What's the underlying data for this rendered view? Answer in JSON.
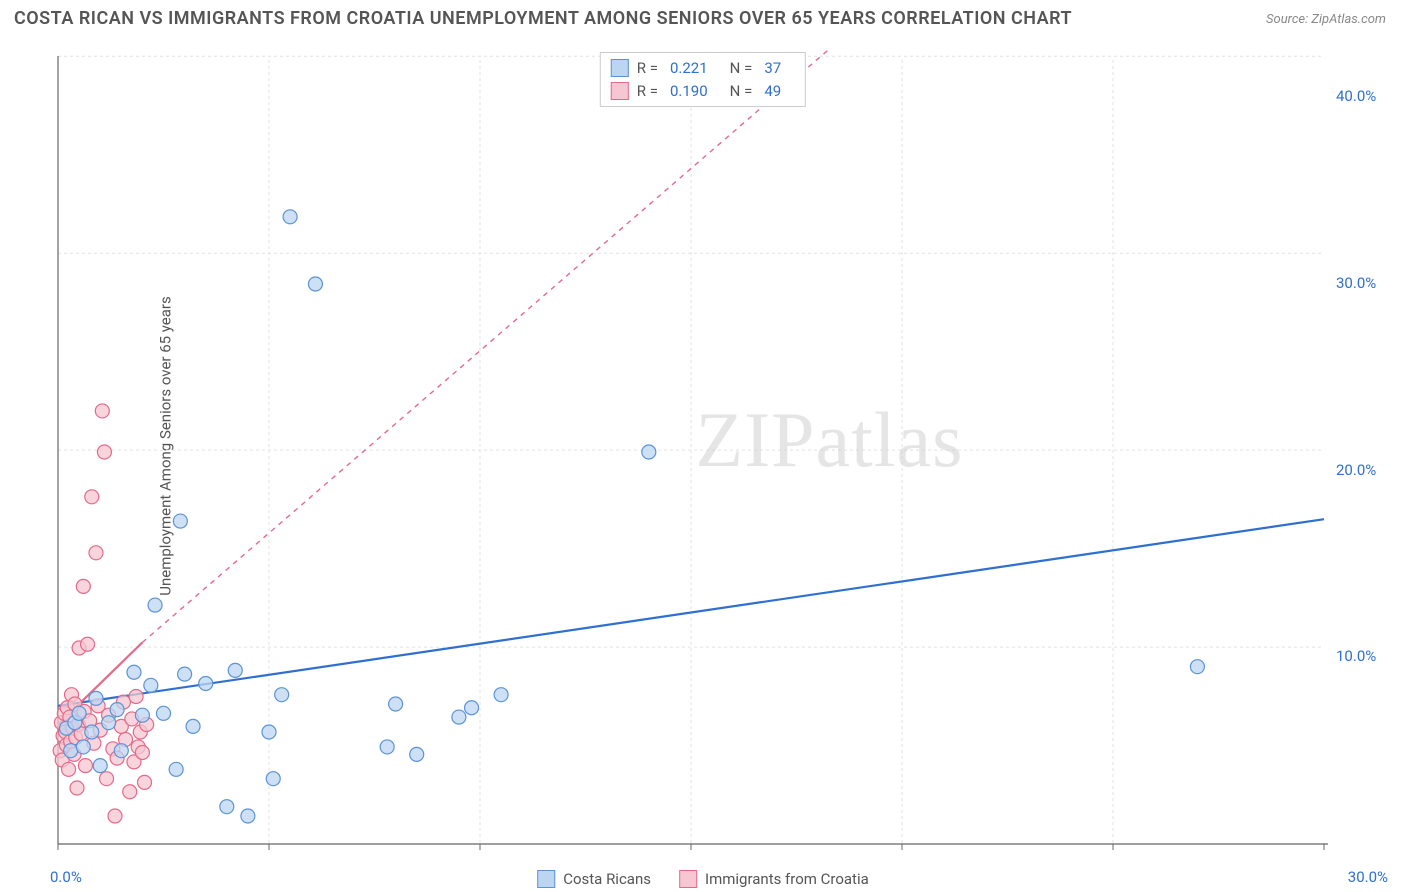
{
  "title": "COSTA RICAN VS IMMIGRANTS FROM CROATIA UNEMPLOYMENT AMONG SENIORS OVER 65 YEARS CORRELATION CHART",
  "source": "Source: ZipAtlas.com",
  "ylabel": "Unemployment Among Seniors over 65 years",
  "watermark_a": "ZIP",
  "watermark_b": "atlas",
  "chart": {
    "type": "scatter",
    "background_color": "#ffffff",
    "grid_color": "#e2e2e2",
    "axis_color": "#666666",
    "text_color": "#555555",
    "value_color": "#2f6fd0",
    "xlim": [
      0,
      30
    ],
    "ylim": [
      0,
      42
    ],
    "x_ticks": [
      0,
      30
    ],
    "x_tick_labels": [
      "0.0%",
      "30.0%"
    ],
    "y_ticks": [
      10,
      20,
      30,
      40
    ],
    "y_tick_labels": [
      "10.0%",
      "20.0%",
      "30.0%",
      "40.0%"
    ],
    "y_grid_lines": [
      10.55,
      21.1,
      31.65,
      42.2
    ],
    "x_grid_divisions": 6,
    "marker_radius": 7,
    "marker_stroke_width": 1.2,
    "trend_width_solid": 2.2,
    "trend_width_dash": 1.4,
    "series": [
      {
        "name": "Costa Ricans",
        "key": "costa_ricans",
        "fill": "#bcd6f2",
        "stroke": "#5b93d6",
        "swatch_fill": "#bcd6f2",
        "swatch_stroke": "#5b93d6",
        "R": "0.221",
        "N": "37",
        "trend": {
          "y0": 7.4,
          "y1": 17.4,
          "xmax": 30,
          "dashed": false,
          "color": "#2f6fd0"
        },
        "points": [
          [
            0.2,
            6.2
          ],
          [
            0.3,
            5.0
          ],
          [
            0.4,
            6.5
          ],
          [
            0.5,
            7.0
          ],
          [
            0.6,
            5.2
          ],
          [
            0.8,
            6.0
          ],
          [
            0.9,
            7.8
          ],
          [
            1.0,
            4.2
          ],
          [
            1.2,
            6.5
          ],
          [
            1.4,
            7.2
          ],
          [
            1.5,
            5.0
          ],
          [
            1.8,
            9.2
          ],
          [
            2.0,
            6.9
          ],
          [
            2.2,
            8.5
          ],
          [
            2.3,
            12.8
          ],
          [
            2.5,
            7.0
          ],
          [
            2.8,
            4.0
          ],
          [
            2.9,
            17.3
          ],
          [
            3.0,
            9.1
          ],
          [
            3.2,
            6.3
          ],
          [
            3.5,
            8.6
          ],
          [
            4.0,
            2.0
          ],
          [
            4.2,
            9.3
          ],
          [
            4.5,
            1.5
          ],
          [
            5.0,
            6.0
          ],
          [
            5.1,
            3.5
          ],
          [
            5.3,
            8.0
          ],
          [
            5.5,
            33.6
          ],
          [
            6.1,
            30.0
          ],
          [
            7.8,
            5.2
          ],
          [
            8.0,
            7.5
          ],
          [
            8.5,
            4.8
          ],
          [
            9.5,
            6.8
          ],
          [
            9.8,
            7.3
          ],
          [
            10.5,
            8.0
          ],
          [
            14.0,
            21.0
          ],
          [
            27.0,
            9.5
          ]
        ]
      },
      {
        "name": "Immigrants from Croatia",
        "key": "immigrants_croatia",
        "fill": "#f6c7d2",
        "stroke": "#e46a8a",
        "swatch_fill": "#f6c7d2",
        "swatch_stroke": "#e46a8a",
        "R": "0.190",
        "N": "49",
        "trend": {
          "y0": 6.4,
          "y1": 10.8,
          "xmax": 2.0,
          "dashed_from": 2.0,
          "dashed_to_x": 19.0,
          "dashed_to_y": 44.0,
          "color": "#e46a8a"
        },
        "points": [
          [
            0.05,
            5.0
          ],
          [
            0.08,
            6.5
          ],
          [
            0.1,
            4.5
          ],
          [
            0.12,
            5.8
          ],
          [
            0.15,
            7.0
          ],
          [
            0.18,
            6.0
          ],
          [
            0.2,
            5.3
          ],
          [
            0.22,
            7.3
          ],
          [
            0.25,
            4.0
          ],
          [
            0.28,
            6.8
          ],
          [
            0.3,
            5.5
          ],
          [
            0.32,
            8.0
          ],
          [
            0.35,
            6.2
          ],
          [
            0.38,
            4.8
          ],
          [
            0.4,
            7.5
          ],
          [
            0.42,
            5.7
          ],
          [
            0.45,
            3.0
          ],
          [
            0.48,
            6.4
          ],
          [
            0.5,
            10.5
          ],
          [
            0.55,
            5.9
          ],
          [
            0.6,
            13.8
          ],
          [
            0.62,
            7.1
          ],
          [
            0.65,
            4.2
          ],
          [
            0.7,
            10.7
          ],
          [
            0.75,
            6.6
          ],
          [
            0.8,
            18.6
          ],
          [
            0.85,
            5.4
          ],
          [
            0.9,
            15.6
          ],
          [
            0.95,
            7.4
          ],
          [
            1.0,
            6.1
          ],
          [
            1.05,
            23.2
          ],
          [
            1.1,
            21.0
          ],
          [
            1.15,
            3.5
          ],
          [
            1.2,
            6.9
          ],
          [
            1.3,
            5.1
          ],
          [
            1.35,
            1.5
          ],
          [
            1.4,
            4.6
          ],
          [
            1.5,
            6.3
          ],
          [
            1.55,
            7.6
          ],
          [
            1.6,
            5.6
          ],
          [
            1.7,
            2.8
          ],
          [
            1.75,
            6.7
          ],
          [
            1.8,
            4.4
          ],
          [
            1.85,
            7.9
          ],
          [
            1.9,
            5.2
          ],
          [
            1.95,
            6.0
          ],
          [
            2.0,
            4.9
          ],
          [
            2.05,
            3.3
          ],
          [
            2.1,
            6.4
          ]
        ]
      }
    ],
    "legend_top_labels": {
      "R": "R =",
      "N": "N ="
    },
    "legend_bottom": [
      "Costa Ricans",
      "Immigrants from Croatia"
    ]
  }
}
